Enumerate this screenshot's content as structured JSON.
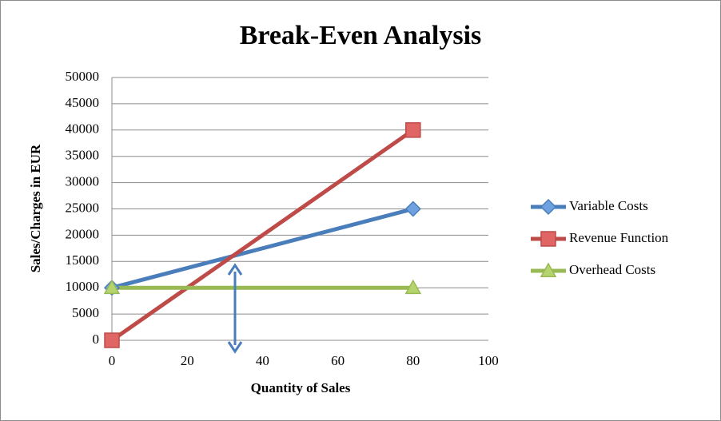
{
  "chart_data": {
    "type": "line",
    "title": "Break-Even Analysis",
    "x_label": "Quantity of Sales",
    "y_label": "Sales/Charges in EUR",
    "x": [
      0,
      80
    ],
    "series": [
      {
        "name": "Variable Costs",
        "color": "#4a7ebb",
        "marker": "diamond",
        "values": [
          10000,
          25000
        ]
      },
      {
        "name": "Revenue Function",
        "color": "#be4b48",
        "marker": "square",
        "values": [
          0,
          40000
        ]
      },
      {
        "name": "Overhead Costs",
        "color": "#98b954",
        "marker": "triangle",
        "values": [
          10000,
          10000
        ]
      }
    ],
    "xlim": [
      0,
      100
    ],
    "xticks": [
      0,
      20,
      40,
      60,
      80,
      100
    ],
    "ylim": [
      0,
      50000
    ],
    "yticks": [
      0,
      5000,
      10000,
      15000,
      20000,
      25000,
      30000,
      35000,
      40000,
      45000,
      50000
    ],
    "grid": true,
    "legend": "right"
  }
}
